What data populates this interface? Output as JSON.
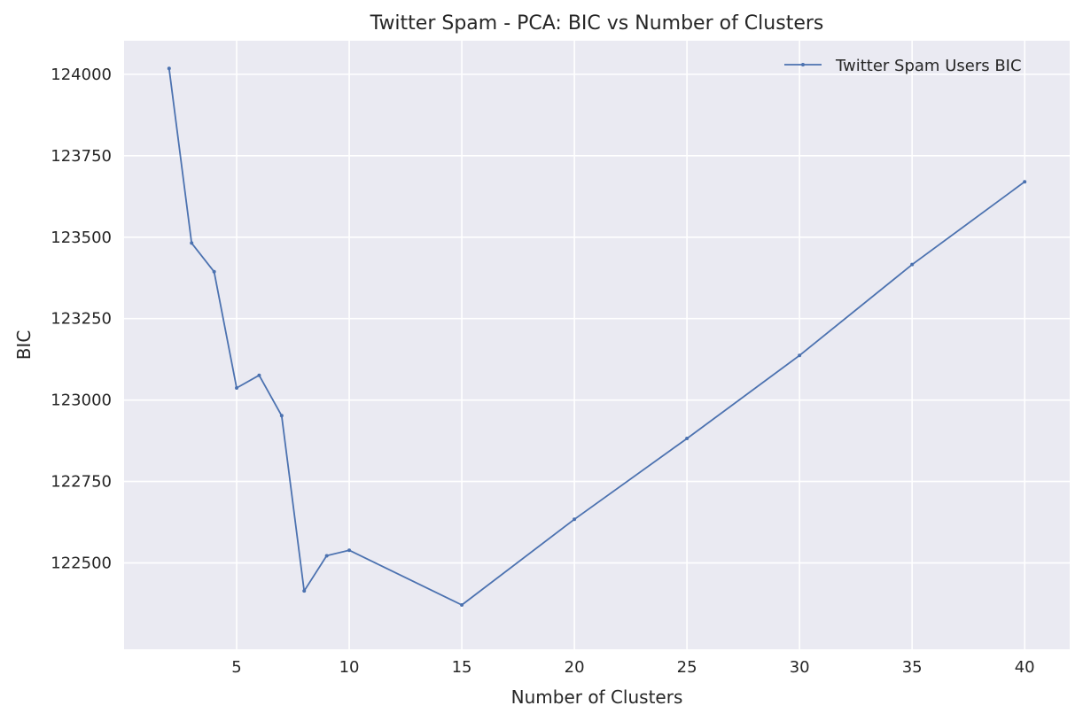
{
  "chart_data": {
    "type": "line",
    "title": "Twitter Spam - PCA: BIC vs Number of Clusters",
    "xlabel": "Number of Clusters",
    "ylabel": "BIC",
    "xlim": [
      0,
      42
    ],
    "ylim": [
      122235,
      124103
    ],
    "xticks": [
      5,
      10,
      15,
      20,
      25,
      30,
      35,
      40
    ],
    "yticks": [
      122500,
      122750,
      123000,
      123250,
      123500,
      123750,
      124000
    ],
    "grid": true,
    "legend": "top-right",
    "series": [
      {
        "name": "Twitter Spam Users BIC",
        "color": "#4c72b0",
        "x": [
          2,
          3,
          4,
          5,
          6,
          7,
          8,
          9,
          10,
          15,
          20,
          25,
          30,
          35,
          40
        ],
        "y": [
          124018,
          123482,
          123394,
          123037,
          123076,
          122952,
          122414,
          122522,
          122539,
          122371,
          122634,
          122882,
          123137,
          123416,
          123670
        ]
      }
    ]
  }
}
